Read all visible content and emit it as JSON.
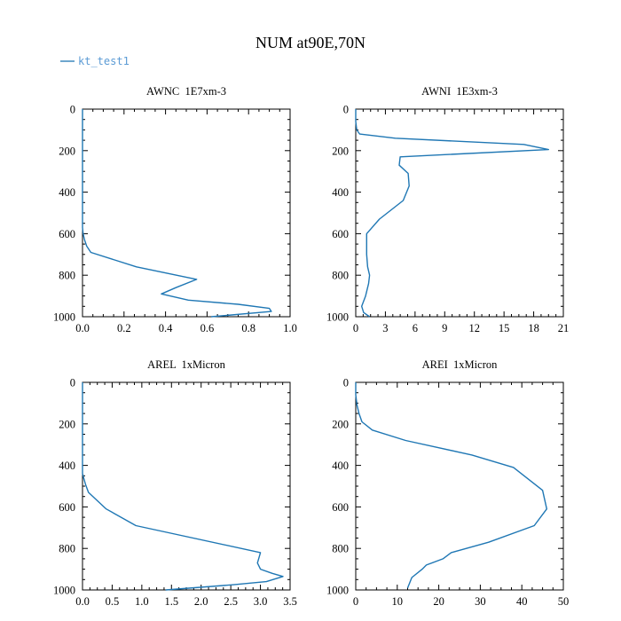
{
  "figure": {
    "title": "NUM at90E,70N",
    "legend": {
      "label": "kt_test1",
      "color": "#1f77b4"
    }
  },
  "chart_data": [
    {
      "type": "line",
      "title": "AWNC  1E7xm-3",
      "xlim": [
        0,
        1.0
      ],
      "ylim": [
        1000,
        0
      ],
      "xticks": [
        "0.0",
        "0.2",
        "0.4",
        "0.6",
        "0.8",
        "1.0"
      ],
      "yticks": [
        "0",
        "200",
        "400",
        "600",
        "800",
        "1000"
      ],
      "series": [
        {
          "name": "kt_test1",
          "color": "#1f77b4",
          "x": [
            0,
            0,
            0,
            0,
            0,
            0.003,
            0.01,
            0.02,
            0.04,
            0.26,
            0.55,
            0.45,
            0.38,
            0.51,
            0.75,
            0.9,
            0.91,
            0.62
          ],
          "y": [
            0,
            200,
            400,
            500,
            570,
            600,
            630,
            660,
            690,
            760,
            820,
            860,
            890,
            920,
            940,
            960,
            975,
            1000
          ]
        }
      ]
    },
    {
      "type": "line",
      "title": "AWNI  1E3xm-3",
      "xlim": [
        0,
        21
      ],
      "ylim": [
        1000,
        0
      ],
      "xticks": [
        "0",
        "3",
        "6",
        "9",
        "12",
        "15",
        "18",
        "21"
      ],
      "yticks": [
        "0",
        "200",
        "400",
        "600",
        "800",
        "1000"
      ],
      "series": [
        {
          "name": "kt_test1",
          "color": "#1f77b4",
          "x": [
            0,
            0,
            0.1,
            0.4,
            4.0,
            17.0,
            19.5,
            4.5,
            4.4,
            5.3,
            5.4,
            4.8,
            2.4,
            1.1,
            1.1,
            1.2,
            1.4,
            1.3,
            1.0,
            0.6,
            0.8,
            1.4
          ],
          "y": [
            0,
            60,
            100,
            120,
            140,
            170,
            195,
            230,
            270,
            310,
            370,
            440,
            530,
            600,
            700,
            760,
            800,
            840,
            900,
            950,
            980,
            1000
          ]
        }
      ]
    },
    {
      "type": "line",
      "title": "AREL  1xMicron",
      "xlim": [
        0,
        3.5
      ],
      "ylim": [
        1000,
        0
      ],
      "xticks": [
        "0.0",
        "0.5",
        "1.0",
        "1.5",
        "2.0",
        "2.5",
        "3.0",
        "3.5"
      ],
      "yticks": [
        "0",
        "200",
        "400",
        "600",
        "800",
        "1000"
      ],
      "series": [
        {
          "name": "kt_test1",
          "color": "#1f77b4",
          "x": [
            0,
            0,
            0,
            0.05,
            0.1,
            0.4,
            0.9,
            3.0,
            2.95,
            3.0,
            3.2,
            3.38,
            3.1,
            2.55,
            1.4
          ],
          "y": [
            0,
            300,
            440,
            490,
            530,
            610,
            690,
            820,
            870,
            900,
            920,
            935,
            960,
            975,
            1000
          ]
        }
      ]
    },
    {
      "type": "line",
      "title": "AREI  1xMicron",
      "xlim": [
        0,
        50
      ],
      "ylim": [
        1000,
        0
      ],
      "xticks": [
        "0",
        "10",
        "20",
        "30",
        "40",
        "50"
      ],
      "yticks": [
        "0",
        "200",
        "400",
        "600",
        "800",
        "1000"
      ],
      "series": [
        {
          "name": "kt_test1",
          "color": "#1f77b4",
          "x": [
            0,
            0,
            0.3,
            0.8,
            1.5,
            4,
            12,
            28,
            38,
            45,
            46,
            43,
            32,
            23,
            21,
            17,
            16,
            13.5,
            12.5
          ],
          "y": [
            0,
            60,
            110,
            150,
            190,
            230,
            280,
            350,
            410,
            520,
            610,
            690,
            770,
            820,
            850,
            880,
            900,
            940,
            990
          ]
        }
      ]
    }
  ]
}
